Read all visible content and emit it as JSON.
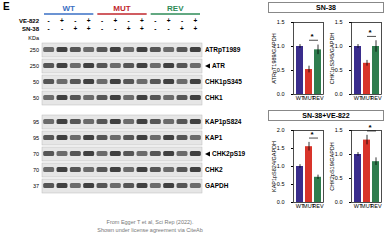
{
  "chart_data": [
    {
      "type": "bar",
      "y_label": "ATRpT1989/GAPDH",
      "categories": [
        "WT",
        "MUT",
        "REV"
      ],
      "values": [
        1.0,
        0.52,
        0.93
      ],
      "errors": [
        0.04,
        0.07,
        0.1
      ],
      "colors": [
        "#3a2d8c",
        "#d8342a",
        "#2f7d4e"
      ],
      "ylim": [
        0,
        1.5
      ],
      "yticks": [
        {
          "value": 0,
          "label": "0.0"
        },
        {
          "value": 0.5,
          "label": "0.5"
        },
        {
          "value": 1,
          "label": "1.0"
        },
        {
          "value": 1.5,
          "label": "1.5"
        }
      ],
      "annotation": "*"
    },
    {
      "type": "bar",
      "y_label": "CHK1pS345/GAPDH",
      "categories": [
        "WT",
        "MUT",
        "REV"
      ],
      "values": [
        1.0,
        0.65,
        1.0
      ],
      "errors": [
        0.04,
        0.06,
        0.12
      ],
      "colors": [
        "#3a2d8c",
        "#d8342a",
        "#2f7d4e"
      ],
      "ylim": [
        0,
        1.5
      ],
      "yticks": [
        {
          "value": 0,
          "label": "0.0"
        },
        {
          "value": 0.5,
          "label": "0.5"
        },
        {
          "value": 1,
          "label": "1.0"
        },
        {
          "value": 1.5,
          "label": "1.5"
        }
      ],
      "annotation": "*"
    },
    {
      "type": "bar",
      "y_label": "KAP1pS824/GAPDH",
      "categories": [
        "WT",
        "MUT",
        "REV"
      ],
      "values": [
        1.0,
        1.55,
        0.7
      ],
      "errors": [
        0.05,
        0.12,
        0.06
      ],
      "colors": [
        "#3a2d8c",
        "#d8342a",
        "#2f7d4e"
      ],
      "ylim": [
        0,
        2
      ],
      "yticks": [
        {
          "value": 0,
          "label": "0.0"
        },
        {
          "value": 0.5,
          "label": "0.5"
        },
        {
          "value": 1,
          "label": "1.0"
        },
        {
          "value": 1.5,
          "label": "1.5"
        },
        {
          "value": 2,
          "label": "2.0"
        }
      ],
      "annotation": "*"
    },
    {
      "type": "bar",
      "y_label": "CHK2pS19/GAPDH",
      "categories": [
        "WT",
        "MUT",
        "REV"
      ],
      "values": [
        1.0,
        1.3,
        0.85
      ],
      "errors": [
        0.04,
        0.1,
        0.08
      ],
      "colors": [
        "#3a2d8c",
        "#d8342a",
        "#2f7d4e"
      ],
      "ylim": [
        0,
        1.5
      ],
      "yticks": [
        {
          "value": 0,
          "label": "0.0"
        },
        {
          "value": 0.5,
          "label": "0.5"
        },
        {
          "value": 1,
          "label": "1.0"
        },
        {
          "value": 1.5,
          "label": "1.5"
        }
      ],
      "annotation": "*"
    }
  ],
  "figure": {
    "panel": "E",
    "chart_headers": [
      "SN-38",
      "SN-38+VE-822"
    ],
    "groups": [
      {
        "name": "WT",
        "color": "#3a6fc4"
      },
      {
        "name": "MUT",
        "color": "#c0262d"
      },
      {
        "name": "REV",
        "color": "#2e8b57"
      }
    ],
    "treatments": [
      {
        "name": "VE-822",
        "signs": [
          "-",
          "+",
          "-",
          "+",
          "-",
          "+",
          "-",
          "+",
          "-",
          "+",
          "-",
          "+"
        ]
      },
      {
        "name": "SN-38",
        "signs": [
          "-",
          "-",
          "+",
          "+",
          "-",
          "-",
          "+",
          "+",
          "-",
          "-",
          "+",
          "+"
        ]
      }
    ],
    "kda_label": "KDa",
    "blot_sections": [
      [
        {
          "label": "ATRpT1989",
          "kda": 250
        },
        {
          "label": "ATR",
          "kda": 250,
          "arrow": true
        },
        {
          "label": "CHK1pS345",
          "kda": 50
        },
        {
          "label": "CHK1",
          "kda": 50
        }
      ],
      [
        {
          "label": "KAP1pS824",
          "kda": 95
        },
        {
          "label": "KAP1",
          "kda": 95
        },
        {
          "label": "CHK2pS19",
          "kda": 70,
          "arrow": true
        },
        {
          "label": "CHK2",
          "kda": 70
        },
        {
          "label": "GAPDH",
          "kda": 37
        }
      ]
    ],
    "caption": [
      "From Egger T et al, Sci Rep (2022).",
      "Shown under license agreement via CiteAb"
    ]
  }
}
